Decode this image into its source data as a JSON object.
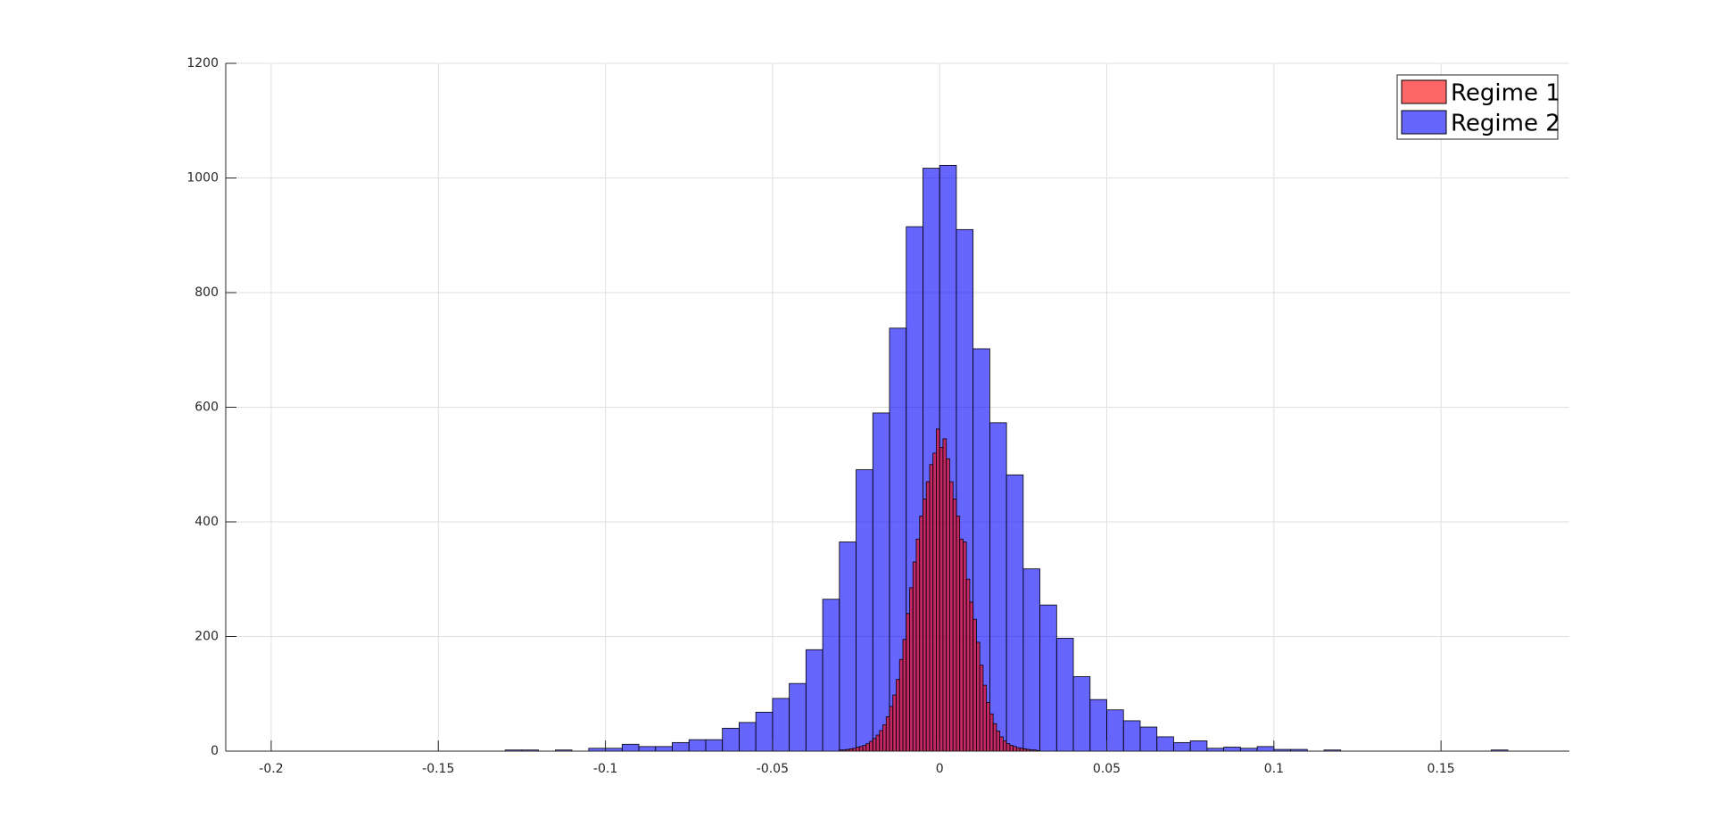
{
  "chart_data": {
    "type": "histogram",
    "xlim": [
      -0.2136,
      0.1884
    ],
    "ylim": [
      0,
      1200
    ],
    "xticks": [
      -0.2,
      -0.15,
      -0.1,
      -0.05,
      0,
      0.05,
      0.1,
      0.15
    ],
    "yticks": [
      0,
      200,
      400,
      600,
      800,
      1000,
      1200
    ],
    "grid": true,
    "legend": "top-right",
    "series": [
      {
        "name": "Regime 1",
        "color": "#ff0000",
        "bins": [
          -0.03,
          -0.029,
          -0.028,
          -0.027,
          -0.026,
          -0.025,
          -0.024,
          -0.023,
          -0.022,
          -0.021,
          -0.02,
          -0.019,
          -0.018,
          -0.017,
          -0.016,
          -0.015,
          -0.014,
          -0.013,
          -0.012,
          -0.011,
          -0.01,
          -0.009,
          -0.008,
          -0.007,
          -0.006,
          -0.005,
          -0.004,
          -0.003,
          -0.002,
          -0.001,
          0,
          0.001,
          0.002,
          0.003,
          0.004,
          0.005,
          0.006,
          0.007,
          0.008,
          0.009,
          0.01,
          0.011,
          0.012,
          0.013,
          0.014,
          0.015,
          0.016,
          0.017,
          0.018,
          0.019,
          0.02,
          0.021,
          0.022,
          0.023,
          0.024,
          0.025,
          0.026,
          0.027,
          0.028,
          0.029,
          0.03
        ],
        "values": [
          2,
          2,
          3,
          4,
          5,
          7,
          8,
          10,
          13,
          17,
          22,
          28,
          36,
          46,
          60,
          78,
          98,
          125,
          160,
          195,
          240,
          285,
          330,
          370,
          410,
          440,
          470,
          500,
          520,
          562,
          530,
          545,
          510,
          470,
          440,
          410,
          370,
          365,
          300,
          260,
          230,
          190,
          150,
          115,
          85,
          65,
          48,
          35,
          25,
          18,
          13,
          10,
          8,
          6,
          5,
          4,
          3,
          2,
          2,
          1
        ]
      },
      {
        "name": "Regime 2",
        "color": "#0000ff",
        "bins": [
          -0.13,
          -0.125,
          -0.12,
          -0.115,
          -0.11,
          -0.105,
          -0.1,
          -0.095,
          -0.09,
          -0.085,
          -0.08,
          -0.075,
          -0.07,
          -0.065,
          -0.06,
          -0.055,
          -0.05,
          -0.045,
          -0.04,
          -0.035,
          -0.03,
          -0.025,
          -0.02,
          -0.015,
          -0.01,
          -0.005,
          0,
          0.005,
          0.01,
          0.015,
          0.02,
          0.025,
          0.03,
          0.035,
          0.04,
          0.045,
          0.05,
          0.055,
          0.06,
          0.065,
          0.07,
          0.075,
          0.08,
          0.085,
          0.09,
          0.095,
          0.1,
          0.105,
          0.11,
          0.115,
          0.12,
          0.125,
          0.13,
          0.135,
          0.14,
          0.145,
          0.15,
          0.155,
          0.16,
          0.165,
          0.17
        ],
        "values": [
          2,
          2,
          0,
          2,
          0,
          5,
          5,
          12,
          8,
          8,
          15,
          20,
          20,
          40,
          50,
          68,
          92,
          118,
          177,
          265,
          365,
          491,
          590,
          738,
          915,
          1017,
          1022,
          910,
          702,
          573,
          482,
          318,
          255,
          197,
          130,
          90,
          72,
          53,
          42,
          25,
          15,
          18,
          5,
          7,
          5,
          8,
          3,
          3,
          0,
          2,
          0,
          0,
          0,
          0,
          0,
          0,
          0,
          0,
          0,
          2
        ]
      }
    ]
  }
}
